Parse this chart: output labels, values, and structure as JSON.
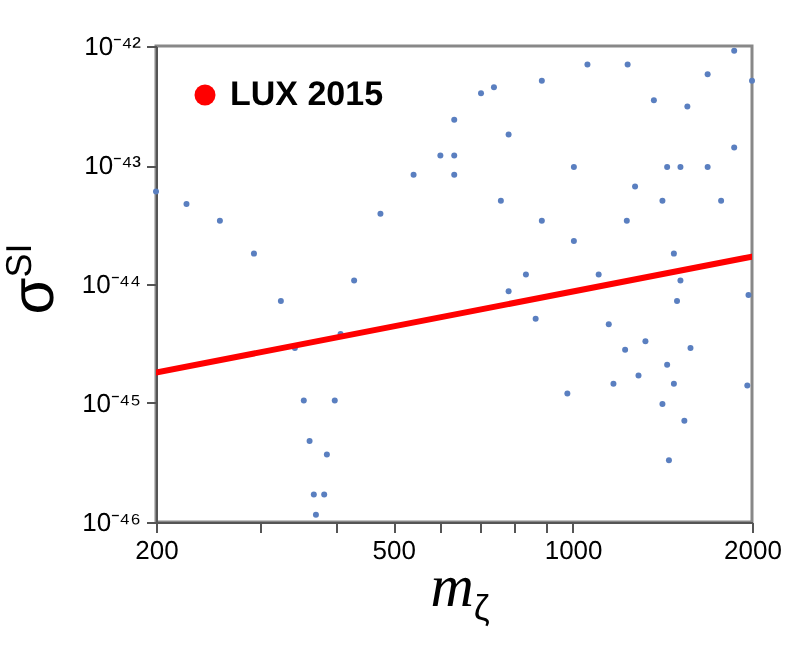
{
  "chart_data": {
    "type": "scatter",
    "xlabel": "m$_{ζ}$",
    "ylabel": "σ$^{SI}$",
    "log": "xy",
    "grid": false,
    "legend": "top left",
    "xlim": [
      200,
      2000
    ],
    "ylim": [
      1e-46,
      1e-42
    ],
    "xticks": [
      200,
      {
        "value": 300,
        "label": null
      },
      {
        "value": 400,
        "label": null
      },
      500,
      {
        "value": 600,
        "label": null
      },
      {
        "value": 700,
        "label": null
      },
      {
        "value": 800,
        "label": null
      },
      {
        "value": 900,
        "label": null
      },
      1000,
      2000
    ],
    "yticks": [
      {
        "value": 1e-46,
        "label": "10⁻⁴⁶"
      },
      {
        "value": 1e-45,
        "label": "10⁻⁴⁵"
      },
      {
        "value": 1e-44,
        "label": "10⁻⁴⁴"
      },
      {
        "value": 1e-43,
        "label": "10⁻⁴³"
      },
      {
        "value": 1e-42,
        "label": "10⁻⁴²"
      }
    ],
    "series": [
      {
        "marker": "circle",
        "color": "#5a7fc0",
        "x": [
          200,
          225,
          256,
          292,
          324,
          342,
          354,
          362,
          368,
          371,
          383,
          387,
          399,
          408,
          430,
          476,
          541,
          633,
          600,
          633,
          702,
          738,
          888,
          1059,
          1237,
          1369,
          1441,
          1479,
          1517,
          1558,
          1685,
          1867,
          2000,
          781,
          1005,
          1273,
          781,
          867,
          835,
          980,
          1106,
          1150,
          1171,
          1225,
          1290,
          1325,
          1415,
          1441,
          1451,
          1479,
          1497,
          1540,
          1577,
          1964,
          1973,
          888,
          1005,
          1233,
          758,
          1775,
          1867,
          1685,
          1517,
          1415,
          633
        ],
        "values": [
          6e-44,
          4.7e-44,
          3.4e-44,
          1.8e-44,
          7.2e-45,
          2.9e-45,
          1.05e-45,
          4.8e-46,
          1.7e-46,
          1.15e-46,
          1.7e-46,
          3.7e-46,
          1.05e-45,
          3.8e-45,
          1.07e-44,
          3.9e-44,
          8.3e-44,
          2.4e-43,
          1.2e-43,
          8.3e-44,
          4e-43,
          4.5e-43,
          5.1e-43,
          7e-43,
          7e-43,
          3.5e-43,
          9.6e-44,
          1.8e-44,
          9.6e-44,
          3.1e-43,
          5.8e-43,
          9.1e-43,
          5.1e-43,
          1.8e-43,
          9.6e-44,
          6.6e-44,
          8.7e-45,
          5.1e-45,
          1.2e-44,
          1.2e-45,
          1.2e-44,
          4.6e-45,
          1.45e-45,
          2.8e-45,
          1.7e-45,
          3.3e-45,
          9.8e-46,
          2.1e-45,
          3.3e-46,
          1.45e-45,
          7.2e-45,
          7.1e-46,
          2.9e-45,
          1.4e-45,
          8.1e-45,
          3.4e-44,
          2.3e-44,
          3.4e-44,
          5e-44,
          5e-44,
          1.4e-43,
          9.6e-44,
          1.07e-44,
          5e-44,
          1.2e-43
        ]
      },
      {
        "type": "line",
        "name": "LUX 2015",
        "color": "#ff0000",
        "x": [
          200,
          2000
        ],
        "values": [
          1.8e-45,
          1.7e-44
        ]
      }
    ]
  }
}
